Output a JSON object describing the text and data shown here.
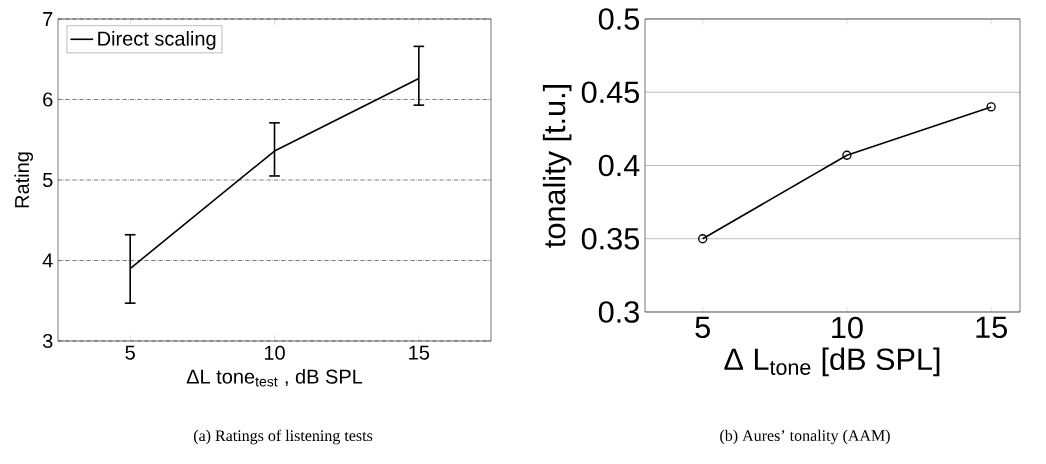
{
  "chart_data": [
    {
      "type": "line",
      "xlabel": "ΔL tone$_{test}$ , dB SPL",
      "ylabel": "Rating",
      "x": [
        5,
        10,
        15
      ],
      "xlim": [
        2.5,
        17.5
      ],
      "ylim": [
        3,
        7
      ],
      "xticks": [
        5,
        10,
        15
      ],
      "yticks": [
        3,
        4,
        5,
        6,
        7
      ],
      "grid": "y",
      "legend": "top left",
      "marker": "none",
      "series": [
        {
          "name": "Direct scaling",
          "color": "#000000",
          "values": [
            3.9,
            5.36,
            6.26
          ],
          "errors": [
            [
              3.47,
              4.32
            ],
            [
              5.05,
              5.71
            ],
            [
              5.93,
              6.66
            ]
          ]
        }
      ],
      "annotations": [
        "(a) Ratings of listening tests"
      ]
    },
    {
      "type": "line",
      "xlabel": "Δ L$_{tone}$ [dB SPL]",
      "ylabel": "tonality [t.u.]",
      "x": [
        5,
        10,
        15
      ],
      "xlim": [
        3,
        16
      ],
      "ylim": [
        0.3,
        0.5
      ],
      "xticks": [
        5,
        10,
        15
      ],
      "yticks": [
        0.3,
        0.35,
        0.4,
        0.45,
        0.5
      ],
      "grid": "y",
      "legend": false,
      "marker": "circle",
      "series": [
        {
          "color": "#000000",
          "values": [
            0.35,
            0.407,
            0.44
          ]
        }
      ],
      "annotations": [
        "(b) Aures’ tonality (AAM)"
      ]
    }
  ]
}
